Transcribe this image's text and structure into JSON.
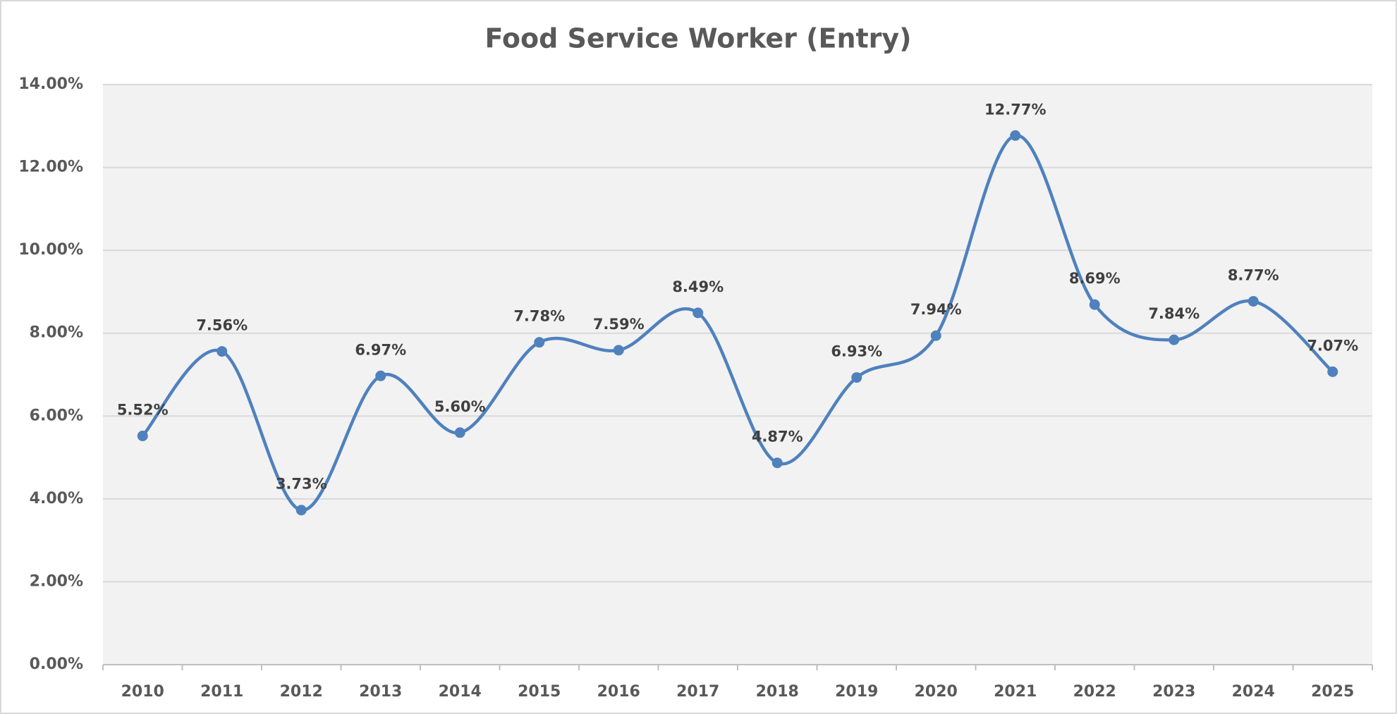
{
  "chart_data": {
    "type": "line",
    "title": "Food Service Worker (Entry)",
    "categories": [
      "2010",
      "2011",
      "2012",
      "2013",
      "2014",
      "2015",
      "2016",
      "2017",
      "2018",
      "2019",
      "2020",
      "2021",
      "2022",
      "2023",
      "2024",
      "2025"
    ],
    "series": [
      {
        "name": "Food Service Worker (Entry)",
        "color": "#4f81bd",
        "values": [
          5.52,
          7.56,
          3.73,
          6.97,
          5.6,
          7.78,
          7.59,
          8.49,
          4.87,
          6.93,
          7.94,
          12.77,
          8.69,
          7.84,
          8.77,
          7.07
        ],
        "value_labels": [
          "5.52%",
          "7.56%",
          "3.73%",
          "6.97%",
          "5.60%",
          "7.78%",
          "7.59%",
          "8.49%",
          "4.87%",
          "6.93%",
          "7.94%",
          "12.77%",
          "8.69%",
          "7.84%",
          "8.77%",
          "7.07%"
        ]
      }
    ],
    "ylim": [
      0,
      14
    ],
    "yticks": [
      {
        "value": 0,
        "label": "0.00%"
      },
      {
        "value": 2,
        "label": "2.00%"
      },
      {
        "value": 4,
        "label": "4.00%"
      },
      {
        "value": 6,
        "label": "6.00%"
      },
      {
        "value": 8,
        "label": "8.00%"
      },
      {
        "value": 10,
        "label": "10.00%"
      },
      {
        "value": 12,
        "label": "12.00%"
      },
      {
        "value": 14,
        "label": "14.00%"
      }
    ],
    "grid": true,
    "smooth": true
  }
}
